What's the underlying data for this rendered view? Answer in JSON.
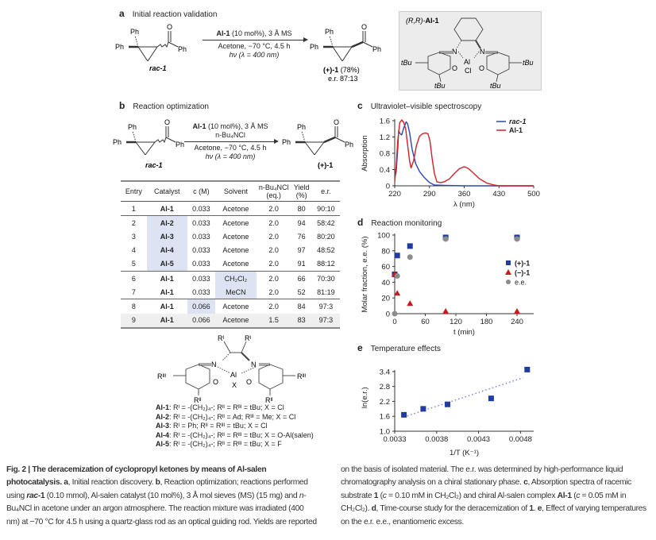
{
  "panel_a": {
    "letter": "a",
    "title": "Initial reaction validation",
    "substrate": {
      "ph_top": "Ph",
      "ph_left": "Ph",
      "o": "O",
      "ph_right": "Ph",
      "label": "rac-1"
    },
    "conditions_top_bold": "Al-1",
    "conditions_top": " (10 mol%), 3 Å MS",
    "conditions_line2": "Acetone, −70 °C, 4.5 h",
    "conditions_line3": "hν (λ = 400 nm)",
    "product": {
      "ph_top": "Ph",
      "ph_left": "Ph",
      "o": "O",
      "ph_right": "Ph",
      "label": "(+)-1",
      "yield": " (78%)",
      "er": "e.r. 87:13"
    },
    "catalyst_box": {
      "label_prefix": "(R,R)-",
      "label_bold": "Al-1",
      "n1": "N",
      "n2": "N",
      "al": "Al",
      "o1": "O",
      "o2": "O",
      "cl": "Cl",
      "tbu1": "tBu",
      "tbu2": "tBu",
      "tbu3": "tBu",
      "tbu4": "tBu"
    }
  },
  "panel_b": {
    "letter": "b",
    "title": "Reaction optimization",
    "substrate": {
      "ph_top": "Ph",
      "ph_left": "Ph",
      "o": "O",
      "ph_right": "Ph",
      "label": "rac-1"
    },
    "conditions_top_bold": "Al-1",
    "conditions_top": " (10 mol%), 3 Å MS",
    "conditions_line2": "n-Bu₄NCl",
    "conditions_line3": "Acetone, −70 °C, 4.5 h",
    "conditions_line4": "hν (λ = 400 nm)",
    "product": {
      "ph_top": "Ph",
      "ph_left": "Ph",
      "o": "O",
      "ph_right": "Ph",
      "label": "(+)-1"
    },
    "table": {
      "headers": [
        "Entry",
        "Catalyst",
        "c (M)",
        "Solvent",
        "n-Bu₄NCl (eq.)",
        "Yield (%)",
        "e.r."
      ],
      "rows": [
        {
          "entry": "1",
          "catalyst": "Al-1",
          "c": "0.033",
          "solvent": "Acetone",
          "nbu4ncl": "2.0",
          "yield": "80",
          "er": "90:10"
        },
        {
          "entry": "2",
          "catalyst": "Al-2",
          "c": "0.033",
          "solvent": "Acetone",
          "nbu4ncl": "2.0",
          "yield": "94",
          "er": "58:42"
        },
        {
          "entry": "3",
          "catalyst": "Al-3",
          "c": "0.033",
          "solvent": "Acetone",
          "nbu4ncl": "2.0",
          "yield": "76",
          "er": "80:20"
        },
        {
          "entry": "4",
          "catalyst": "Al-4",
          "c": "0.033",
          "solvent": "Acetone",
          "nbu4ncl": "2.0",
          "yield": "97",
          "er": "48:52"
        },
        {
          "entry": "5",
          "catalyst": "Al-5",
          "c": "0.033",
          "solvent": "Acetone",
          "nbu4ncl": "2.0",
          "yield": "91",
          "er": "88:12"
        },
        {
          "entry": "6",
          "catalyst": "Al-1",
          "c": "0.033",
          "solvent": "CH₂Cl₂",
          "nbu4ncl": "2.0",
          "yield": "66",
          "er": "70:30"
        },
        {
          "entry": "7",
          "catalyst": "Al-1",
          "c": "0.033",
          "solvent": "MeCN",
          "nbu4ncl": "2.0",
          "yield": "52",
          "er": "81:19"
        },
        {
          "entry": "8",
          "catalyst": "Al-1",
          "c": "0.066",
          "solvent": "Acetone",
          "nbu4ncl": "2.0",
          "yield": "84",
          "er": "97:3"
        },
        {
          "entry": "9",
          "catalyst": "Al-1",
          "c": "0.066",
          "solvent": "Acetone",
          "nbu4ncl": "1.5",
          "yield": "83",
          "er": "97:3"
        }
      ]
    },
    "salen": {
      "r1a": "Rᴵ",
      "r1b": "Rᴵ",
      "n1": "N",
      "n2": "N",
      "al": "Al",
      "x": "X",
      "o1": "O",
      "o2": "O",
      "r3a": "Rᴵᴵᴵ",
      "r3b": "Rᴵᴵᴵ",
      "r2a": "Rᴵᴵ",
      "r2b": "Rᴵᴵ"
    },
    "catalyst_legend": [
      {
        "name": "Al-1",
        "desc": ": Rᴵ = -(CH₂)₄-; Rᴵᴵ = Rᴵᴵᴵ = tBu; X = Cl"
      },
      {
        "name": "Al-2",
        "desc": ": Rᴵ = -(CH₂)₄-; Rᴵᴵ = Ad; Rᴵᴵᴵ = Me; X = Cl"
      },
      {
        "name": "Al-3",
        "desc": ": Rᴵ = Ph; Rᴵᴵ = Rᴵᴵᴵ = tBu; X = Cl"
      },
      {
        "name": "Al-4",
        "desc": ": Rᴵ = -(CH₂)₄-; Rᴵᴵ = Rᴵᴵᴵ = tBu; X = O-Al(salen)"
      },
      {
        "name": "Al-5",
        "desc": ": Rᴵ = -(CH₂)₄-; Rᴵᴵ = Rᴵᴵᴵ = tBu; X = F"
      }
    ]
  },
  "chart_data": [
    {
      "letter": "c",
      "title": "Ultraviolet–visible spectroscopy",
      "type": "line",
      "xlabel": "λ (nm)",
      "ylabel": "Absorption",
      "xlim": [
        220,
        500
      ],
      "ylim": [
        0,
        1.6
      ],
      "xticks": [
        220,
        290,
        360,
        430,
        500
      ],
      "yticks": [
        0,
        0.4,
        0.8,
        1.2,
        1.6
      ],
      "ytick_labels": [
        "0",
        "0.4",
        "0.8",
        "1.2",
        "1.6"
      ],
      "legend": "top-right",
      "series": [
        {
          "name": "rac-1",
          "color": "#2b48a8",
          "x": [
            220,
            223,
            226,
            228,
            231,
            234,
            238,
            243,
            246,
            250,
            255,
            262,
            270,
            280,
            290,
            300,
            320,
            360,
            430,
            500
          ],
          "y": [
            0.2,
            0.35,
            0.9,
            1.35,
            1.28,
            1.25,
            1.42,
            1.57,
            1.52,
            1.3,
            0.9,
            0.55,
            0.35,
            0.2,
            0.08,
            0.02,
            0.01,
            0,
            0,
            0
          ]
        },
        {
          "name": "Al-1",
          "color": "#d0202a",
          "x": [
            220,
            223,
            226,
            230,
            234,
            238,
            242,
            246,
            250,
            253,
            258,
            264,
            270,
            276,
            282,
            287,
            291,
            295,
            300,
            305,
            312,
            320,
            330,
            340,
            350,
            360,
            368,
            378,
            390,
            405,
            420,
            430,
            500
          ],
          "y": [
            0.1,
            0.5,
            1.1,
            1.55,
            1.62,
            1.56,
            1.4,
            1.0,
            0.6,
            0.44,
            0.62,
            1.0,
            1.22,
            1.28,
            1.3,
            1.28,
            1.1,
            0.7,
            0.3,
            0.1,
            0.08,
            0.1,
            0.17,
            0.3,
            0.42,
            0.47,
            0.43,
            0.32,
            0.18,
            0.07,
            0.02,
            0,
            0
          ]
        }
      ]
    },
    {
      "letter": "d",
      "title": "Reaction monitoring",
      "type": "scatter",
      "xlabel": "t (min)",
      "ylabel": "Molar fraction, e.e. (%)",
      "xlim": [
        0,
        270
      ],
      "ylim": [
        0,
        100
      ],
      "xticks": [
        0,
        60,
        120,
        180,
        240
      ],
      "yticks": [
        0,
        20,
        40,
        60,
        80,
        100
      ],
      "ytick_labels": [
        "0",
        "20",
        "40",
        "60",
        "80",
        "100"
      ],
      "legend": "right",
      "series": [
        {
          "name": "(+)-1",
          "color": "#1f3c9e",
          "marker": "square",
          "x": [
            0,
            5,
            30,
            100,
            240
          ],
          "y": [
            50,
            74,
            86,
            97,
            97
          ]
        },
        {
          "name": "(−)-1",
          "color": "#c81a1a",
          "marker": "triangle",
          "x": [
            0,
            5,
            30,
            100,
            240
          ],
          "y": [
            50,
            26,
            13,
            3,
            3
          ]
        },
        {
          "name": "e.e.",
          "color": "#8c8c8c",
          "marker": "circle",
          "x": [
            0,
            5,
            30,
            100,
            240
          ],
          "y": [
            0,
            48,
            72,
            95,
            95
          ]
        }
      ]
    },
    {
      "letter": "e",
      "title": "Temperature effects",
      "type": "scatter",
      "xlabel": "1/T (K⁻¹)",
      "ylabel": "ln(e.r.)",
      "xlim": [
        0.0033,
        0.00495
      ],
      "ylim": [
        1.0,
        3.7
      ],
      "xticks": [
        0.0033,
        0.0038,
        0.0043,
        0.0048
      ],
      "xtick_labels": [
        "0.0033",
        "0.0038",
        "0.0043",
        "0.0048"
      ],
      "yticks": [
        1.0,
        1.6,
        2.2,
        2.8,
        3.4
      ],
      "ytick_labels": [
        "1.0",
        "1.6",
        "2.2",
        "2.8",
        "3.4"
      ],
      "series": [
        {
          "name": "ln(e.r.)",
          "color": "#1f3c9e",
          "marker": "square",
          "x": [
            0.00341,
            0.00364,
            0.00393,
            0.00445,
            0.00488
          ],
          "y": [
            1.66,
            1.9,
            2.08,
            2.32,
            3.48
          ]
        }
      ],
      "trendline": {
        "color": "#7a86d0",
        "x": [
          0.00341,
          0.00483
        ],
        "y": [
          1.57,
          3.15
        ]
      }
    }
  ],
  "caption": [
    {
      "t": "Fig. 2 | The deracemization of cyclopropyl ketones by means of Al-salen photocatalysis. a",
      "b": true
    },
    {
      "t": ", Initial reaction discovery. "
    },
    {
      "t": "b",
      "b": true
    },
    {
      "t": ", Reaction optimization; reactions performed using "
    },
    {
      "t": "rac",
      "b": true,
      "i": true
    },
    {
      "t": "-1",
      "b": true
    },
    {
      "t": " (0.10 mmol), Al-salen catalyst (10 mol%), 3 Å mol sieves (MS) (15 mg) and "
    },
    {
      "t": "n",
      "i": true
    },
    {
      "t": "-Bu₄NCl in acetone under an argon atmosphere. The reaction mixture was irradiated (400 nm) at −70 °C for 4.5 h using a quartz-glass rod as an optical guiding rod. Yields are reported on the basis of isolated material. The e.r. was determined by high-performance liquid chromatography analysis on a chiral stationary phase. "
    },
    {
      "t": "c",
      "b": true
    },
    {
      "t": ", Absorption spectra of racemic substrate "
    },
    {
      "t": "1",
      "b": true
    },
    {
      "t": " ("
    },
    {
      "t": "c",
      "i": true
    },
    {
      "t": " = 0.10 mM in CH₂Cl₂) and chiral Al-salen complex "
    },
    {
      "t": "Al-1",
      "b": true
    },
    {
      "t": " ("
    },
    {
      "t": "c",
      "i": true
    },
    {
      "t": " = 0.05 mM in CH₂Cl₂). "
    },
    {
      "t": "d",
      "b": true
    },
    {
      "t": ", Time-course study for the deracemization of "
    },
    {
      "t": "1",
      "b": true
    },
    {
      "t": ". "
    },
    {
      "t": "e",
      "b": true
    },
    {
      "t": ", Effect of varying temperatures on the e.r. e.e., enantiomeric excess."
    }
  ]
}
